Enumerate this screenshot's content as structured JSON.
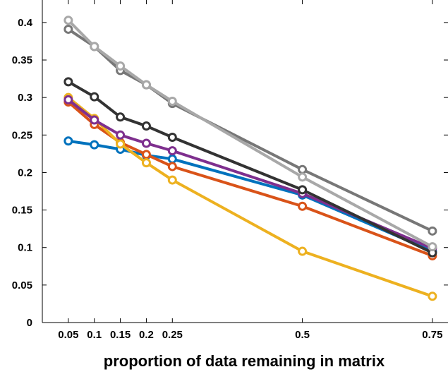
{
  "chart_data": {
    "type": "line",
    "title": "",
    "xlabel": "proportion of data remaining in matrix",
    "ylabel": "",
    "x": [
      0.05,
      0.1,
      0.15,
      0.2,
      0.25,
      0.5,
      0.75
    ],
    "x_tick_labels": [
      "0.05",
      "0.1",
      "0.15",
      "0.2",
      "0.25",
      "0.5",
      "0.75"
    ],
    "y_ticks": [
      0,
      0.05,
      0.1,
      0.15,
      0.2,
      0.25,
      0.3,
      0.35,
      0.4
    ],
    "y_tick_labels": [
      "0",
      "0.05",
      "0.1",
      "0.15",
      "0.2",
      "0.25",
      "0.3",
      "0.35",
      "0.4"
    ],
    "xlim": [
      0,
      0.78
    ],
    "ylim": [
      0,
      0.43
    ],
    "grid": false,
    "legend": "none",
    "marker": "open-circle",
    "series": [
      {
        "color": "#0072BD",
        "values": [
          0.242,
          0.237,
          0.231,
          0.223,
          0.218,
          0.17,
          0.095
        ]
      },
      {
        "color": "#D95319",
        "values": [
          0.294,
          0.264,
          0.24,
          0.224,
          0.208,
          0.155,
          0.089
        ]
      },
      {
        "color": "#EDB120",
        "values": [
          0.3,
          0.272,
          0.238,
          0.213,
          0.19,
          0.095,
          0.035
        ]
      },
      {
        "color": "#7E2F8E",
        "values": [
          0.297,
          0.27,
          0.25,
          0.239,
          0.229,
          0.172,
          0.099
        ]
      },
      {
        "color": "#333333",
        "values": [
          0.321,
          0.301,
          0.274,
          0.262,
          0.247,
          0.177,
          0.093
        ]
      },
      {
        "color": "#777777",
        "values": [
          0.391,
          0.368,
          0.336,
          0.317,
          0.292,
          0.204,
          0.122
        ]
      },
      {
        "color": "#A8A8A8",
        "values": [
          0.403,
          0.368,
          0.342,
          0.317,
          0.295,
          0.194,
          0.101
        ]
      }
    ]
  }
}
